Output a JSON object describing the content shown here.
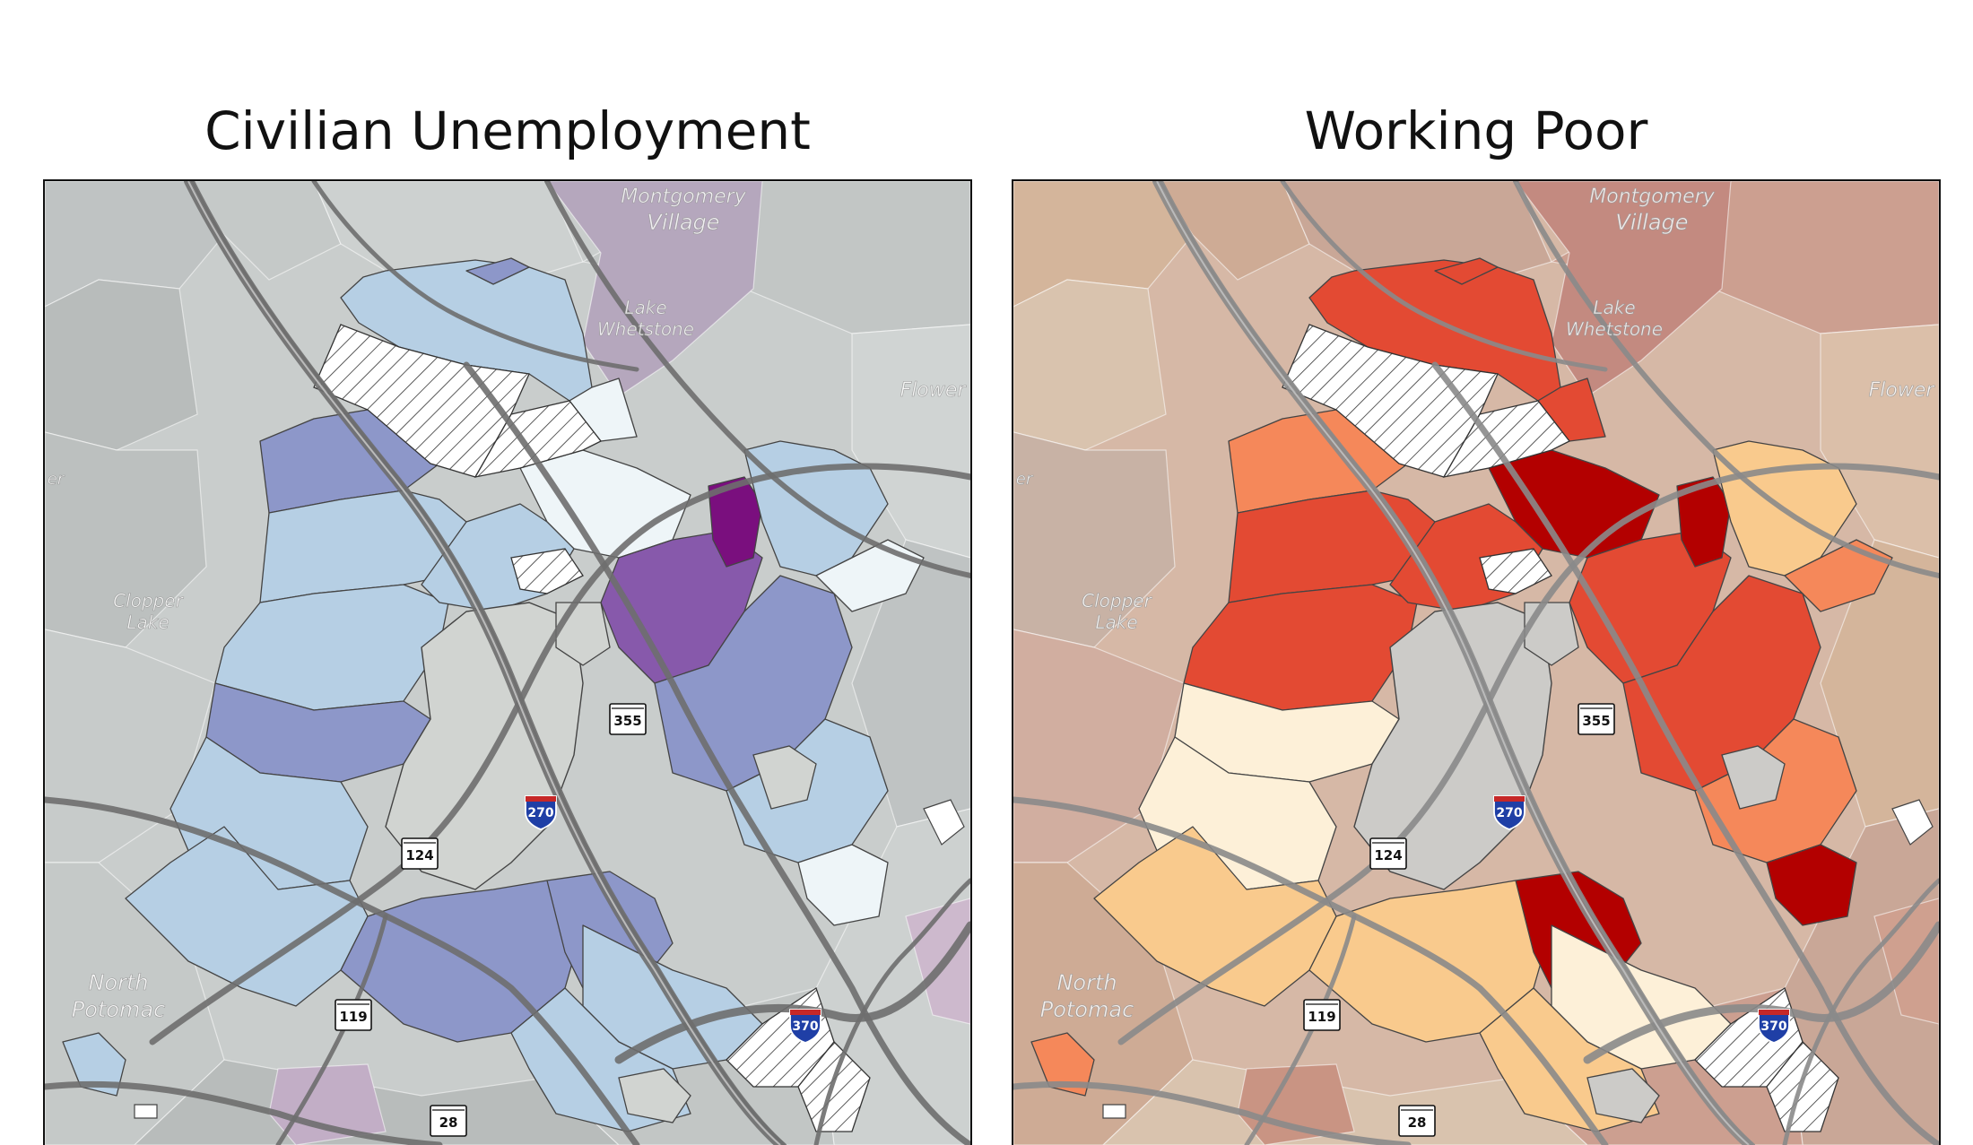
{
  "maps": [
    {
      "id": "unemployment",
      "title": "Civilian Unemployment",
      "palette": {
        "background": "#c9cdcc",
        "outside": [
          "#bfc3c3",
          "#c5c9c8",
          "#cdd1d0",
          "#b8bcbb",
          "#c2c6c5",
          "#d0d4d3",
          "#bcc0bf",
          "#c7cbca"
        ],
        "outside_accent": [
          "#b5a7bd",
          "#cdb9cd",
          "#c2aec6"
        ],
        "center": "#d1d4d1",
        "classes": [
          "#eef5f8",
          "#b6cfe4",
          "#8d97c9",
          "#8759ab",
          "#7a0f7e"
        ]
      },
      "assignments": {
        "tl": 1,
        "tr": 0,
        "lu": 2,
        "lw": 1,
        "lm": 1,
        "lb": 2,
        "bc": 1,
        "bl": 1,
        "bm": 2,
        "mid": 2,
        "wedge": 0,
        "ctr": 1,
        "rm": 3,
        "rd": 4,
        "rt": 1,
        "rte": 0,
        "rs": 2,
        "rs2": 1,
        "sp": 0,
        "bb": 1,
        "rl": 1,
        "farw": 1,
        "cap": 2
      },
      "labels": {
        "place_montgomery_village": "Village",
        "place_montgomery_top": "Montgomery",
        "place_lake": "Lake",
        "place_lake2": "Whetstone",
        "place_clopper": "Clopper",
        "place_clopper2": "Lake",
        "place_north": "North",
        "place_potomac": "Potomac",
        "place_flower": "Flower",
        "place_edge": "er"
      },
      "routes": {
        "r355": "355",
        "r270": "270",
        "r124": "124",
        "r119": "119",
        "r370": "370",
        "r28": "28"
      },
      "road_color": "#6e6e6e",
      "lake_color": "#ffffff"
    },
    {
      "id": "working_poor",
      "title": "Working Poor",
      "palette": {
        "background": "#d6b8a6",
        "outside": [
          "#d4b59b",
          "#ceab95",
          "#c9a797",
          "#d9c3ae",
          "#cc9f90",
          "#dbbfa9",
          "#c8b2a5",
          "#d1aea0"
        ],
        "outside_accent": [
          "#c38a80",
          "#cfa08f",
          "#c99483"
        ],
        "center": "#cccbc8",
        "classes": [
          "#fdf0d8",
          "#f9ca8d",
          "#f5885a",
          "#e34a33",
          "#b30000"
        ]
      },
      "assignments": {
        "tl": 3,
        "tr": 3,
        "lu": 2,
        "lw": 3,
        "lm": 3,
        "lb": 0,
        "bc": 0,
        "bl": 1,
        "bm": 1,
        "mid": 4,
        "wedge": 4,
        "ctr": 3,
        "rm": 3,
        "rd": 4,
        "rt": 1,
        "rte": 2,
        "rs": 3,
        "rs2": 2,
        "sp": 4,
        "bb": 0,
        "rl": 1,
        "farw": 2,
        "cap": 3
      },
      "labels": {
        "place_montgomery_village": "Village",
        "place_montgomery_top": "Montgomery",
        "place_lake": "Lake",
        "place_lake2": "Whetstone",
        "place_clopper": "Clopper",
        "place_clopper2": "Lake",
        "place_north": "North",
        "place_potomac": "Potomac",
        "place_flower": "Flower",
        "place_edge": "er"
      },
      "routes": {
        "r355": "355",
        "r270": "270",
        "r124": "124",
        "r119": "119",
        "r370": "370",
        "r28": "28"
      },
      "road_color": "#8a8a8a",
      "lake_color": "#ffffff"
    }
  ]
}
